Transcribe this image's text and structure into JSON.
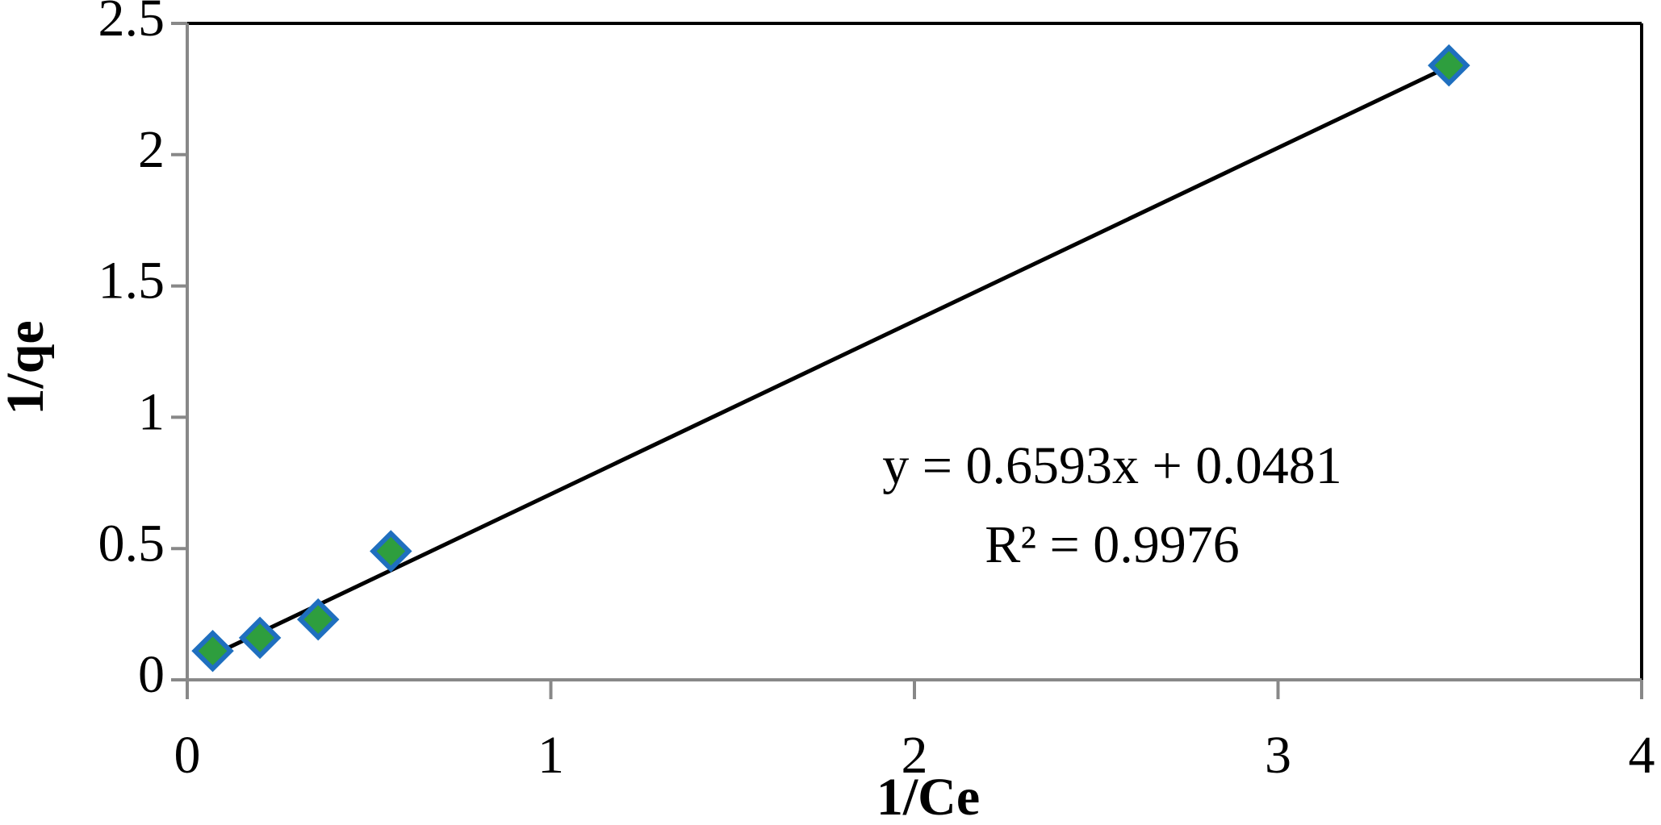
{
  "chart_data": {
    "type": "scatter",
    "x_label": "1/Ce",
    "y_label": "1/qe",
    "series": [
      {
        "color": "#2e9e3e",
        "edge_color": "#1f6fbf",
        "x": [
          0.07,
          0.2,
          0.36,
          0.56,
          3.47
        ],
        "values": [
          0.11,
          0.16,
          0.23,
          0.49,
          2.34
        ]
      }
    ],
    "trendline": {
      "x": [
        0.07,
        3.47
      ],
      "values": [
        0.094,
        2.336
      ],
      "color": "#000000"
    },
    "equation": "y = 0.6593x + 0.0481",
    "r_squared": "R² = 0.9976",
    "xlim": [
      0,
      4
    ],
    "xticks": [
      0,
      1,
      2,
      3,
      4
    ],
    "ylim": [
      0,
      2.5
    ],
    "yticks": [
      0,
      0.5,
      1,
      1.5,
      2,
      2.5
    ],
    "grid": false
  }
}
